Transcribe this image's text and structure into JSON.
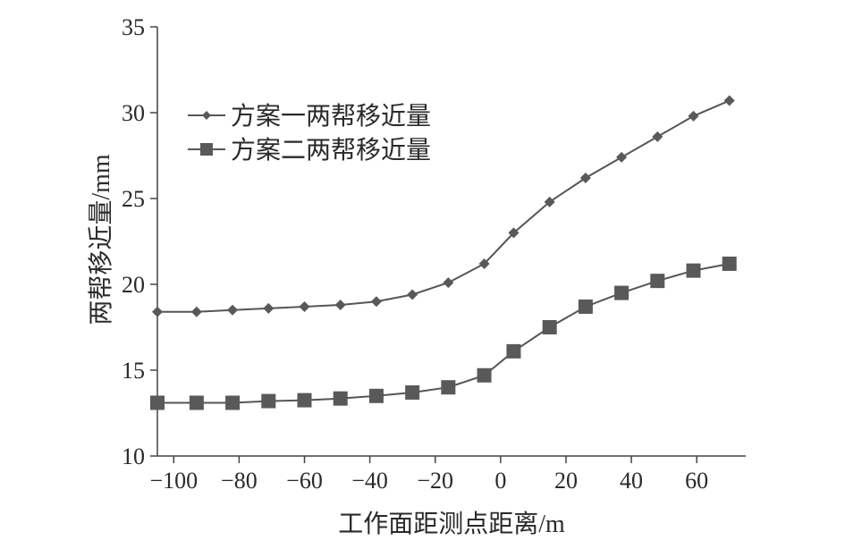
{
  "chart_data": {
    "type": "line",
    "xlabel": "工作面距测点距离/m",
    "ylabel": "两帮移近量/mm",
    "xlim": [
      -105,
      75
    ],
    "ylim": [
      10,
      35
    ],
    "xticks": [
      "-100",
      "-80",
      "-60",
      "-40",
      "-20",
      "0",
      "20",
      "40",
      "60"
    ],
    "yticks": [
      "10",
      "15",
      "20",
      "25",
      "30",
      "35"
    ],
    "grid": false,
    "legend_position": "top-left",
    "x": [
      -105,
      -93,
      -82,
      -71,
      -60,
      -49,
      -38,
      -27,
      -16,
      -5,
      4,
      15,
      26,
      37,
      48,
      59,
      70
    ],
    "series": [
      {
        "name": "方案一两帮移近量",
        "marker": "diamond",
        "values": [
          18.4,
          18.4,
          18.5,
          18.6,
          18.7,
          18.8,
          19.0,
          19.4,
          20.1,
          21.2,
          23.0,
          24.8,
          26.2,
          27.4,
          28.6,
          29.8,
          30.7
        ]
      },
      {
        "name": "方案二两帮移近量",
        "marker": "square",
        "values": [
          13.1,
          13.1,
          13.1,
          13.2,
          13.25,
          13.35,
          13.5,
          13.7,
          14.0,
          14.7,
          16.1,
          17.5,
          18.7,
          19.5,
          20.2,
          20.8,
          21.2
        ]
      }
    ],
    "line_color": "#555555",
    "marker_color": "#595959"
  }
}
